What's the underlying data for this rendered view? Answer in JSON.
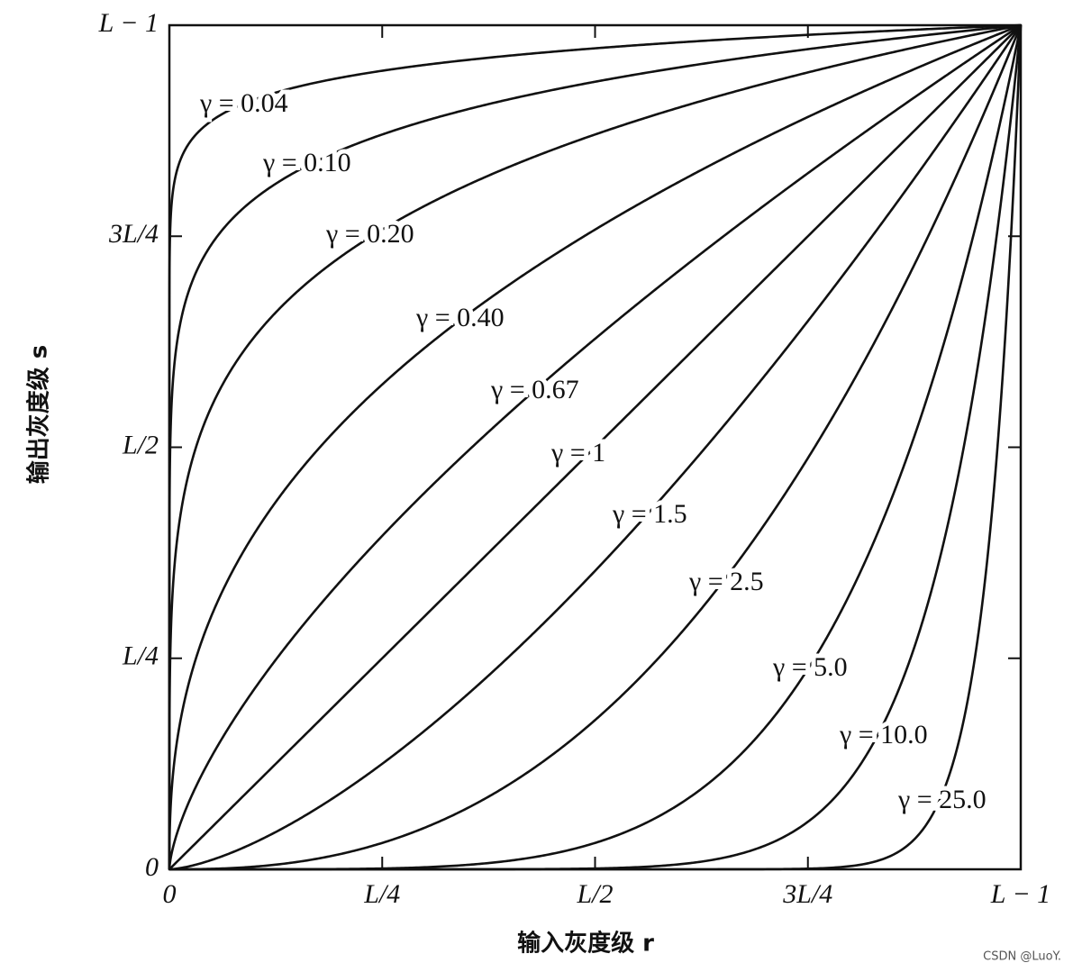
{
  "chart_data": {
    "type": "gamma",
    "x_label": "输入灰度级 r",
    "y_label": "输出灰度级 s",
    "xlim": [
      0,
      1
    ],
    "ylim": [
      0,
      1
    ],
    "xticks": [
      0,
      {
        "value": 0.25,
        "label": "L/4"
      },
      {
        "value": 0.5,
        "label": "L/2"
      },
      {
        "value": 0.75,
        "label": "3L/4"
      },
      {
        "value": 1,
        "label": "L − 1"
      }
    ],
    "yticks": [
      0,
      {
        "value": 0.25,
        "label": "L/4"
      },
      {
        "value": 0.5,
        "label": "L/2"
      },
      {
        "value": 0.75,
        "label": "3L/4"
      },
      {
        "value": 1,
        "label": "L − 1"
      }
    ],
    "color": "#111111",
    "series": [
      {
        "name": "γ = 0.04",
        "gamma": 0.04
      },
      {
        "name": "γ = 0.10",
        "gamma": 0.1
      },
      {
        "name": "γ = 0.20",
        "gamma": 0.2
      },
      {
        "name": "γ = 0.40",
        "gamma": 0.4
      },
      {
        "name": "γ = 0.67",
        "gamma": 0.67
      },
      {
        "name": "γ = 1",
        "gamma": 1
      },
      {
        "name": "γ = 1.5",
        "gamma": 1.5
      },
      {
        "name": "γ = 2.5",
        "gamma": 2.5
      },
      {
        "name": "γ = 5.0",
        "gamma": 5.0
      },
      {
        "name": "γ = 10.0",
        "gamma": 10.0
      },
      {
        "name": "γ = 25.0",
        "gamma": 25.0
      }
    ],
    "watermark": "CSDN @LuoY."
  }
}
